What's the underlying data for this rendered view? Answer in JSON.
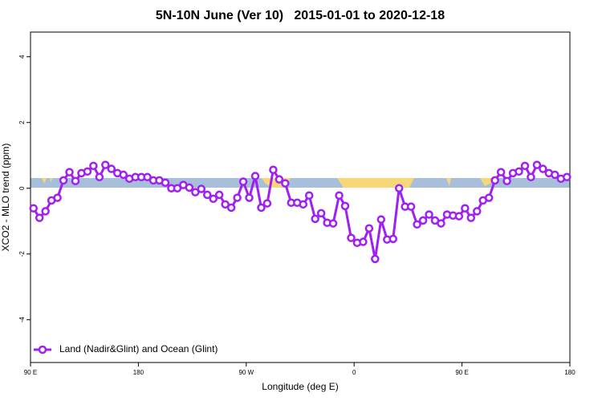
{
  "chart_data": {
    "type": "line",
    "title": "5N-10N June (Ver 10)   2015-01-01 to 2020-12-18",
    "xlabel": "Longitude (deg E)",
    "ylabel": "XCO2 - MLO trend (ppm)",
    "x": [
      92.5,
      97.5,
      102.5,
      107.5,
      112.5,
      117.5,
      122.5,
      127.5,
      132.5,
      137.5,
      142.5,
      147.5,
      152.5,
      157.5,
      162.5,
      167.5,
      172.5,
      177.5,
      182.5,
      187.5,
      192.5,
      197.5,
      202.5,
      207.5,
      212.5,
      217.5,
      222.5,
      227.5,
      232.5,
      237.5,
      242.5,
      247.5,
      252.5,
      257.5,
      262.5,
      267.5,
      272.5,
      277.5,
      282.5,
      287.5,
      292.5,
      297.5,
      302.5,
      307.5,
      312.5,
      317.5,
      322.5,
      327.5,
      332.5,
      337.5,
      342.5,
      347.5,
      352.5,
      357.5,
      362.5,
      367.5,
      372.5,
      377.5,
      382.5,
      387.5,
      392.5,
      397.5,
      402.5,
      407.5,
      412.5,
      417.5,
      422.5,
      427.5,
      432.5,
      437.5,
      442.5,
      447.5,
      452.5,
      457.5,
      462.5,
      467.5,
      472.5,
      477.5,
      482.5,
      487.5,
      492.5,
      497.5,
      502.5,
      507.5,
      512.5,
      517.5,
      522.5,
      527.5,
      532.5,
      537.5
    ],
    "series": [
      {
        "name": "Land (Nadir&Glint) and Ocean (Glint)",
        "color": "#a020f0",
        "values": [
          -0.61,
          -0.9,
          -0.7,
          -0.37,
          -0.29,
          0.24,
          0.49,
          0.22,
          0.46,
          0.51,
          0.68,
          0.34,
          0.71,
          0.59,
          0.46,
          0.41,
          0.29,
          0.34,
          0.34,
          0.34,
          0.24,
          0.24,
          0.17,
          0,
          0,
          0.1,
          0.02,
          -0.12,
          -0.02,
          -0.2,
          -0.32,
          -0.2,
          -0.49,
          -0.59,
          -0.29,
          0.2,
          -0.29,
          0.37,
          -0.59,
          -0.46,
          0.56,
          0.27,
          0.15,
          -0.44,
          -0.44,
          -0.49,
          -0.22,
          -0.93,
          -0.76,
          -1.05,
          -1.07,
          -0.22,
          -0.54,
          -1.51,
          -1.66,
          -1.63,
          -1.22,
          -2.15,
          -0.95,
          -1.56,
          -1.54,
          0,
          -0.56,
          -0.56,
          -1.1,
          -0.98,
          -0.8,
          -0.98,
          -1.07,
          -0.8,
          -0.83,
          -0.85,
          -0.61,
          -0.9,
          -0.7,
          -0.37,
          -0.29,
          0.24,
          0.49,
          0.22,
          0.46,
          0.51,
          0.68,
          0.34,
          0.71,
          0.59,
          0.46,
          0.41,
          0.29,
          0.34
        ]
      }
    ],
    "xlim": [
      90,
      540
    ],
    "xticks": [
      {
        "value": 90,
        "label": "90 E"
      },
      180,
      {
        "value": 270,
        "label": "90 W"
      },
      {
        "value": 360,
        "label": "0"
      },
      {
        "value": 450,
        "label": "90 E"
      },
      {
        "value": 540,
        "label": "180"
      }
    ],
    "ylim": [
      -5.3,
      4.75
    ],
    "yticks": [
      -4,
      -2,
      0,
      2,
      4
    ],
    "legend": "bottomleft"
  }
}
